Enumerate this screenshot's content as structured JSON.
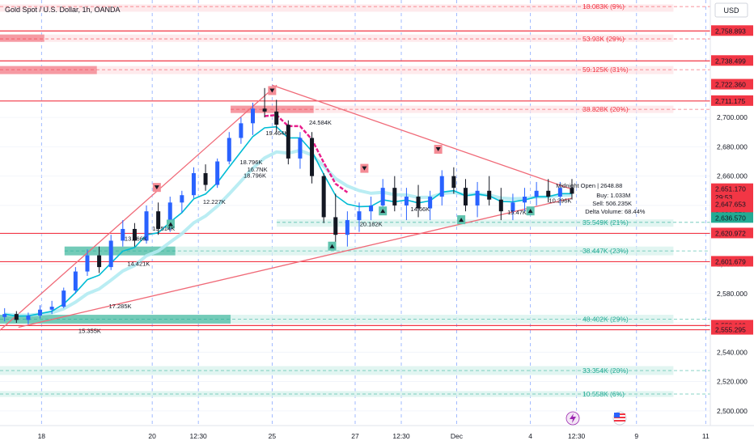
{
  "header": {
    "title": "Gold Spot / U.S. Dollar, 1h, OANDA",
    "currency": "USD"
  },
  "colors": {
    "bull": "#2962ff",
    "bear": "#131722",
    "resist": "#f23645",
    "support": "#22ab94",
    "resist_fill": "#fde3e6",
    "support_fill": "#d7f1ec",
    "trend": "#f06a78",
    "fast": "#00bcd4",
    "slow": "#b2ebf2",
    "magenta": "#e91e8c",
    "grid": "#2962ff"
  },
  "chart_data": {
    "type": "candlestick",
    "symbol": "Gold Spot / U.S. Dollar",
    "interval": "1h",
    "exchange": "OANDA",
    "y_axis": {
      "min": 2490,
      "max": 2780,
      "ticks": [
        2500,
        2520,
        2540,
        2560,
        2580,
        2600,
        2620,
        2640,
        2660,
        2680,
        2700
      ]
    },
    "x_axis": {
      "ticks": [
        {
          "label": "18",
          "x": 0.5
        },
        {
          "label": "20",
          "x": 12.5
        },
        {
          "label": "12:30",
          "x": 17.5
        },
        {
          "label": "25",
          "x": 25.5
        },
        {
          "label": "27",
          "x": 34.5
        },
        {
          "label": "12:30",
          "x": 39.5
        },
        {
          "label": "Dec",
          "x": 45.5
        },
        {
          "label": "4",
          "x": 53.5
        },
        {
          "label": "12:30",
          "x": 58.5
        },
        {
          "label": "9",
          "x": 65
        },
        {
          "label": "11",
          "x": 72.5
        }
      ],
      "range": [
        -4,
        73
      ]
    },
    "price_labels": [
      {
        "value": "2,758.893",
        "price": 2758.893,
        "type": "resist"
      },
      {
        "value": "2,738.499",
        "price": 2738.499,
        "type": "resist"
      },
      {
        "value": "2,722.360",
        "price": 2722.36,
        "type": "resist"
      },
      {
        "value": "2,711.175",
        "price": 2711.175,
        "type": "resist"
      },
      {
        "value": "2,651.170",
        "price": 2651.17,
        "type": "resist"
      },
      {
        "value": "29:53",
        "price": 2645.6,
        "type": "resist"
      },
      {
        "value": "2,647.653",
        "price": 2640.7,
        "type": "resist"
      },
      {
        "value": "2,636.570",
        "price": 2633.8,
        "type": "resist"
      },
      {
        "value": "2,636.570",
        "price": 2631.5,
        "type": "support"
      },
      {
        "value": "2,620.972",
        "price": 2620.972,
        "type": "resist"
      },
      {
        "value": "2,601.679",
        "price": 2601.679,
        "type": "resist"
      },
      {
        "value": "2,558.168",
        "price": 2558.168,
        "type": "resist"
      },
      {
        "value": "2,555.295",
        "price": 2555.295,
        "type": "resist"
      }
    ],
    "zones": [
      {
        "label": "18.083K (9%)",
        "price": 2775.5,
        "top": 2777,
        "bottom": 2772,
        "x0": -4,
        "x1": 69,
        "kind": "resist",
        "bar_to": null
      },
      {
        "label": "53.93K (29%)",
        "price": 2753.5,
        "top": 2756.5,
        "bottom": 2751.5,
        "x0": -4,
        "x1": 69,
        "kind": "resist",
        "bar_to": 0.8
      },
      {
        "label": "59.125K (31%)",
        "price": 2732.5,
        "top": 2735,
        "bottom": 2729.5,
        "x0": -4,
        "x1": 69,
        "kind": "resist",
        "bar_to": 6.5
      },
      {
        "label": "38.828K (20%)",
        "price": 2705.5,
        "top": 2708,
        "bottom": 2703,
        "x0": 21,
        "x1": 69,
        "kind": "resist",
        "bar_to": 30
      },
      {
        "label": "35.549K (21%)",
        "price": 2628.5,
        "top": 2630.5,
        "bottom": 2625.5,
        "x0": 26,
        "x1": 69,
        "kind": "support",
        "bar_to": null
      },
      {
        "label": "38.447K (23%)",
        "price": 2609,
        "top": 2612,
        "bottom": 2606,
        "x0": 3,
        "x1": 69,
        "kind": "support",
        "bar_to": 15
      },
      {
        "label": "48.402K (29%)",
        "price": 2562.5,
        "top": 2565.5,
        "bottom": 2559.5,
        "x0": -4,
        "x1": 69,
        "kind": "support",
        "bar_to": 21
      },
      {
        "label": "33.354K (20%)",
        "price": 2527.5,
        "top": 2530.5,
        "bottom": 2524.5,
        "x0": -4,
        "x1": 69,
        "kind": "support",
        "bar_to": null
      },
      {
        "label": "10.558K (6%)",
        "price": 2511.5,
        "top": 2513.5,
        "bottom": 2509.5,
        "x0": -4,
        "x1": 69,
        "kind": "support",
        "bar_to": null
      }
    ],
    "candles": [
      [
        2564,
        2570,
        2561,
        2566
      ],
      [
        2566,
        2568,
        2560,
        2562
      ],
      [
        2562,
        2567,
        2559,
        2565
      ],
      [
        2565,
        2572,
        2563,
        2569
      ],
      [
        2569,
        2575,
        2566,
        2571
      ],
      [
        2571,
        2584,
        2570,
        2582
      ],
      [
        2582,
        2598,
        2580,
        2595
      ],
      [
        2595,
        2610,
        2592,
        2606
      ],
      [
        2606,
        2612,
        2594,
        2598
      ],
      [
        2598,
        2620,
        2596,
        2616
      ],
      [
        2616,
        2630,
        2612,
        2624
      ],
      [
        2624,
        2628,
        2612,
        2616
      ],
      [
        2616,
        2640,
        2614,
        2636
      ],
      [
        2636,
        2642,
        2620,
        2624
      ],
      [
        2624,
        2646,
        2622,
        2642
      ],
      [
        2642,
        2650,
        2635,
        2647
      ],
      [
        2647,
        2666,
        2645,
        2662
      ],
      [
        2662,
        2668,
        2650,
        2654
      ],
      [
        2654,
        2672,
        2652,
        2670
      ],
      [
        2670,
        2690,
        2668,
        2686
      ],
      [
        2686,
        2700,
        2682,
        2696
      ],
      [
        2696,
        2710,
        2688,
        2706
      ],
      [
        2706,
        2720,
        2700,
        2704
      ],
      [
        2704,
        2712,
        2690,
        2695
      ],
      [
        2695,
        2698,
        2668,
        2672
      ],
      [
        2672,
        2690,
        2665,
        2686
      ],
      [
        2686,
        2690,
        2655,
        2660
      ],
      [
        2660,
        2662,
        2628,
        2632
      ],
      [
        2632,
        2648,
        2615,
        2620
      ],
      [
        2620,
        2636,
        2612,
        2630
      ],
      [
        2630,
        2642,
        2622,
        2636
      ],
      [
        2636,
        2646,
        2630,
        2640
      ],
      [
        2640,
        2658,
        2636,
        2652
      ],
      [
        2652,
        2660,
        2636,
        2640
      ],
      [
        2640,
        2652,
        2630,
        2646
      ],
      [
        2646,
        2654,
        2632,
        2638
      ],
      [
        2638,
        2650,
        2630,
        2646
      ],
      [
        2646,
        2664,
        2640,
        2660
      ],
      [
        2660,
        2666,
        2648,
        2652
      ],
      [
        2652,
        2658,
        2636,
        2640
      ],
      [
        2640,
        2656,
        2632,
        2650
      ],
      [
        2650,
        2660,
        2640,
        2644
      ],
      [
        2644,
        2652,
        2630,
        2636
      ],
      [
        2636,
        2648,
        2630,
        2642
      ],
      [
        2642,
        2652,
        2636,
        2646
      ],
      [
        2646,
        2656,
        2640,
        2650
      ],
      [
        2650,
        2658,
        2642,
        2646
      ],
      [
        2646,
        2656,
        2640,
        2652
      ],
      [
        2652,
        2658,
        2644,
        2648
      ]
    ],
    "markers": [
      {
        "type": "sell",
        "x": 13,
        "price": 2652
      },
      {
        "type": "buy",
        "x": 14.5,
        "price": 2627
      },
      {
        "type": "sell",
        "x": 25.5,
        "price": 2718
      },
      {
        "type": "buy",
        "x": 32,
        "price": 2612
      },
      {
        "type": "sell",
        "x": 35.5,
        "price": 2665
      },
      {
        "type": "buy",
        "x": 37.5,
        "price": 2636
      },
      {
        "type": "sell",
        "x": 43.5,
        "price": 2678
      },
      {
        "type": "buy",
        "x": 46,
        "price": 2630
      },
      {
        "type": "buy",
        "x": 53.5,
        "price": 2636
      }
    ],
    "trendlines": [
      {
        "from": [
          -4,
          2555
        ],
        "to": [
          26,
          2722
        ]
      },
      {
        "from": [
          25.5,
          2722
        ],
        "to": [
          58,
          2651
        ]
      },
      {
        "from": [
          -2,
          2557
        ],
        "to": [
          58,
          2645
        ]
      }
    ],
    "volume_labels": [
      {
        "text": "24.584K",
        "x": 29.5,
        "price": 2695
      },
      {
        "text": "19.464K",
        "x": 24.8,
        "price": 2688
      },
      {
        "text": "18.796K",
        "x": 22,
        "price": 2668
      },
      {
        "text": "16.7NK",
        "x": 22.8,
        "price": 2663
      },
      {
        "text": "18.796K",
        "x": 22.4,
        "price": 2659
      },
      {
        "text": "12.227K",
        "x": 18,
        "price": 2641
      },
      {
        "text": "13.514K",
        "x": 12.5,
        "price": 2623
      },
      {
        "text": "13.966K",
        "x": 9.5,
        "price": 2616
      },
      {
        "text": "14.421K",
        "x": 9.8,
        "price": 2599
      },
      {
        "text": "17.285K",
        "x": 7.8,
        "price": 2570
      },
      {
        "text": "15.355K",
        "x": 4.5,
        "price": 2553
      },
      {
        "text": "20.182K",
        "x": 35,
        "price": 2626
      },
      {
        "text": "14.66K",
        "x": 40.5,
        "price": 2636
      },
      {
        "text": "15.47K",
        "x": 51,
        "price": 2634
      },
      {
        "text": "10.296K",
        "x": 55.5,
        "price": 2642
      }
    ],
    "info_box": {
      "title": "Midnight Open | 2648.88",
      "buy": "Buy: 1.033M",
      "sell": "Sell: 506.235K",
      "delta": "Delta Volume: 68.44%"
    }
  }
}
